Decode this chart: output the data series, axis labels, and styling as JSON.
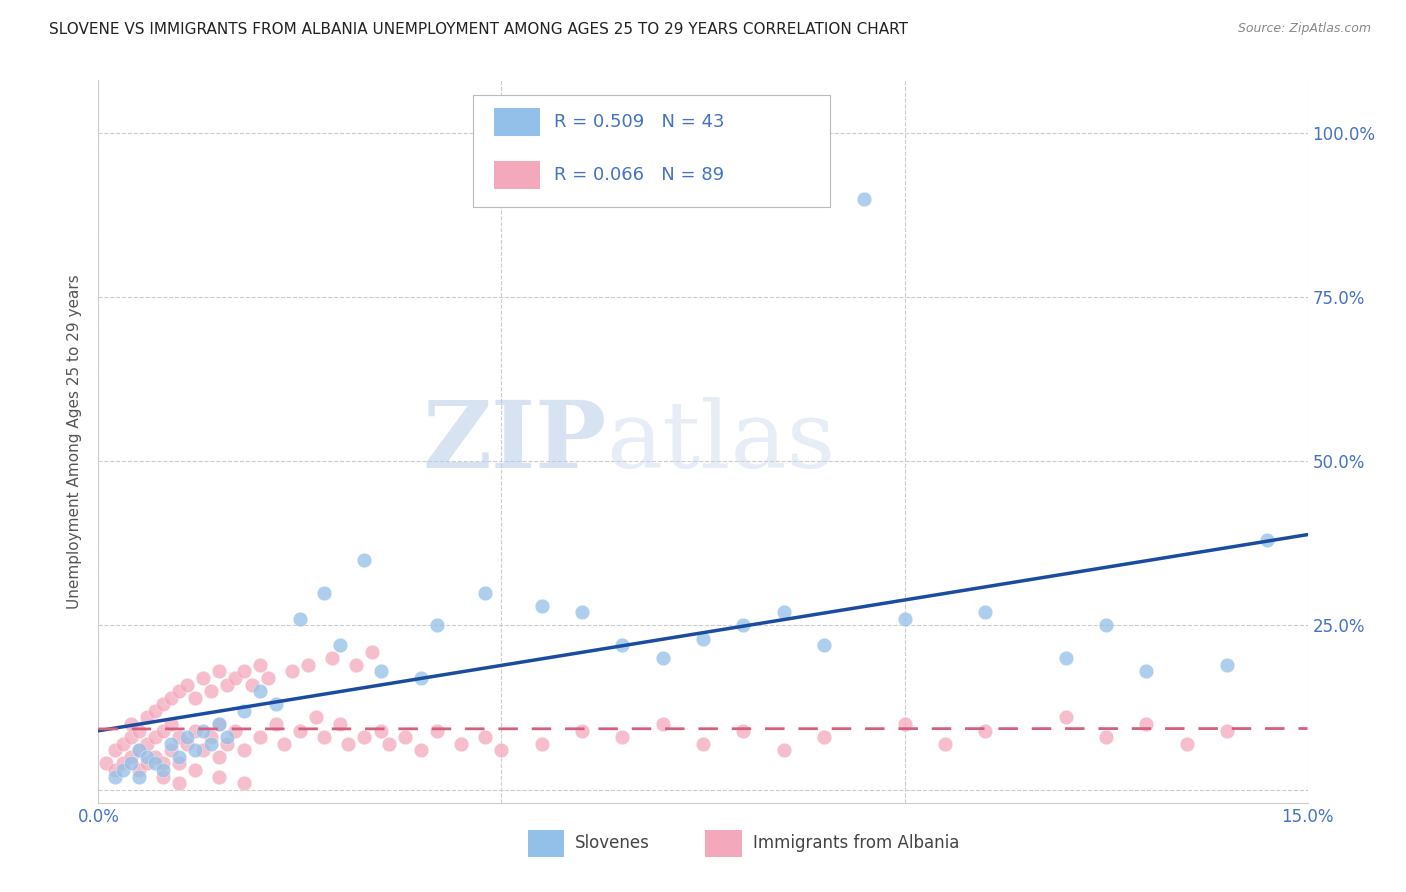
{
  "title": "SLOVENE VS IMMIGRANTS FROM ALBANIA UNEMPLOYMENT AMONG AGES 25 TO 29 YEARS CORRELATION CHART",
  "source": "Source: ZipAtlas.com",
  "ylabel": "Unemployment Among Ages 25 to 29 years",
  "xlim": [
    0.0,
    0.15
  ],
  "ylim": [
    -0.02,
    1.08
  ],
  "xticks": [
    0.0,
    0.05,
    0.1,
    0.15
  ],
  "xtick_labels": [
    "0.0%",
    "",
    "",
    "15.0%"
  ],
  "yticks": [
    0.0,
    0.25,
    0.5,
    0.75,
    1.0
  ],
  "ytick_labels": [
    "",
    "25.0%",
    "50.0%",
    "75.0%",
    "100.0%"
  ],
  "slovene_color": "#92C0E8",
  "albania_color": "#F4A8BC",
  "slovene_line_color": "#1A4CA0",
  "albania_line_color": "#D46080",
  "slovene_R": 0.509,
  "slovene_N": 43,
  "albania_R": 0.066,
  "albania_N": 89,
  "watermark_zip": "ZIP",
  "watermark_atlas": "atlas",
  "legend_slovenes": "Slovenes",
  "legend_albania": "Immigrants from Albania",
  "slovene_scatter_x": [
    0.002,
    0.003,
    0.004,
    0.005,
    0.005,
    0.006,
    0.007,
    0.008,
    0.009,
    0.01,
    0.011,
    0.012,
    0.013,
    0.014,
    0.015,
    0.016,
    0.018,
    0.02,
    0.022,
    0.025,
    0.028,
    0.03,
    0.033,
    0.035,
    0.04,
    0.042,
    0.048,
    0.055,
    0.06,
    0.065,
    0.07,
    0.075,
    0.08,
    0.085,
    0.09,
    0.095,
    0.1,
    0.11,
    0.12,
    0.125,
    0.13,
    0.14,
    0.145
  ],
  "slovene_scatter_y": [
    0.02,
    0.03,
    0.04,
    0.02,
    0.06,
    0.05,
    0.04,
    0.03,
    0.07,
    0.05,
    0.08,
    0.06,
    0.09,
    0.07,
    0.1,
    0.08,
    0.12,
    0.15,
    0.13,
    0.26,
    0.3,
    0.22,
    0.35,
    0.18,
    0.17,
    0.25,
    0.3,
    0.28,
    0.27,
    0.22,
    0.2,
    0.23,
    0.25,
    0.27,
    0.22,
    0.9,
    0.26,
    0.27,
    0.2,
    0.25,
    0.18,
    0.19,
    0.38
  ],
  "albania_scatter_x": [
    0.001,
    0.002,
    0.002,
    0.003,
    0.003,
    0.004,
    0.004,
    0.004,
    0.005,
    0.005,
    0.005,
    0.006,
    0.006,
    0.006,
    0.007,
    0.007,
    0.007,
    0.008,
    0.008,
    0.008,
    0.009,
    0.009,
    0.009,
    0.01,
    0.01,
    0.01,
    0.011,
    0.011,
    0.012,
    0.012,
    0.013,
    0.013,
    0.014,
    0.014,
    0.015,
    0.015,
    0.015,
    0.016,
    0.016,
    0.017,
    0.017,
    0.018,
    0.018,
    0.019,
    0.02,
    0.02,
    0.021,
    0.022,
    0.023,
    0.024,
    0.025,
    0.026,
    0.027,
    0.028,
    0.029,
    0.03,
    0.031,
    0.032,
    0.033,
    0.034,
    0.035,
    0.036,
    0.038,
    0.04,
    0.042,
    0.045,
    0.048,
    0.05,
    0.055,
    0.06,
    0.065,
    0.07,
    0.075,
    0.08,
    0.085,
    0.09,
    0.1,
    0.105,
    0.11,
    0.12,
    0.125,
    0.13,
    0.135,
    0.14,
    0.008,
    0.01,
    0.012,
    0.015,
    0.018
  ],
  "albania_scatter_y": [
    0.04,
    0.06,
    0.03,
    0.07,
    0.04,
    0.08,
    0.05,
    0.1,
    0.06,
    0.09,
    0.03,
    0.11,
    0.07,
    0.04,
    0.12,
    0.08,
    0.05,
    0.13,
    0.09,
    0.04,
    0.14,
    0.1,
    0.06,
    0.15,
    0.08,
    0.04,
    0.16,
    0.07,
    0.14,
    0.09,
    0.17,
    0.06,
    0.15,
    0.08,
    0.18,
    0.1,
    0.05,
    0.16,
    0.07,
    0.17,
    0.09,
    0.18,
    0.06,
    0.16,
    0.19,
    0.08,
    0.17,
    0.1,
    0.07,
    0.18,
    0.09,
    0.19,
    0.11,
    0.08,
    0.2,
    0.1,
    0.07,
    0.19,
    0.08,
    0.21,
    0.09,
    0.07,
    0.08,
    0.06,
    0.09,
    0.07,
    0.08,
    0.06,
    0.07,
    0.09,
    0.08,
    0.1,
    0.07,
    0.09,
    0.06,
    0.08,
    0.1,
    0.07,
    0.09,
    0.11,
    0.08,
    0.1,
    0.07,
    0.09,
    0.02,
    0.01,
    0.03,
    0.02,
    0.01
  ],
  "title_fontsize": 11,
  "source_fontsize": 9,
  "tick_fontsize": 12,
  "ylabel_fontsize": 11,
  "grid_color": "#cccccc",
  "tick_color": "#4472c4",
  "title_color": "#222222",
  "source_color": "#888888"
}
